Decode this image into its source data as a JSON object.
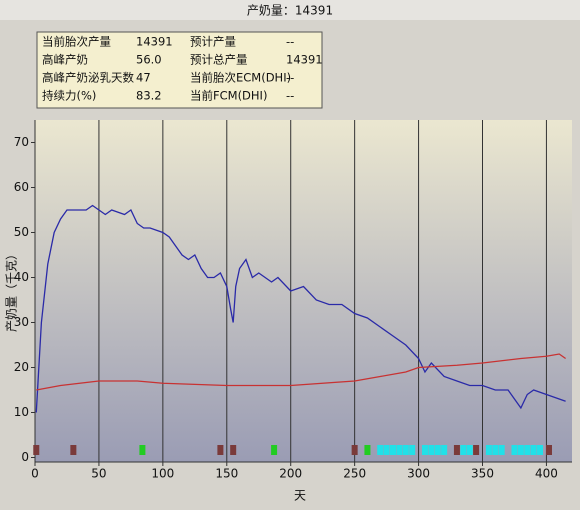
{
  "chart_data": {
    "type": "line",
    "title": "产奶量：14391",
    "xlabel": "天",
    "ylabel": "产奶量（千克）",
    "info": [
      [
        "当前胎次产量",
        "14391",
        "预计产量",
        "--"
      ],
      [
        "高峰产奶",
        "56.0",
        "预计总产量",
        "14391"
      ],
      [
        "高峰产奶泌乳天数",
        "47",
        "当前胎次ECM(DHI)",
        "--"
      ],
      [
        "持续力(%)",
        "83.2",
        "当前FCM(DHI)",
        "--"
      ]
    ],
    "xlim": [
      0,
      420
    ],
    "ylim": [
      -1,
      75
    ],
    "xticks": [
      0,
      50,
      100,
      150,
      200,
      250,
      300,
      350,
      400
    ],
    "yticks": [
      0,
      10,
      20,
      30,
      40,
      50,
      60,
      70
    ],
    "grid": "x",
    "series": [
      {
        "color": "#2a2aa8",
        "x": [
          1,
          5,
          10,
          15,
          20,
          25,
          30,
          40,
          45,
          50,
          55,
          60,
          70,
          75,
          80,
          85,
          90,
          100,
          105,
          110,
          115,
          120,
          125,
          130,
          135,
          140,
          145,
          150,
          153,
          155,
          157,
          160,
          165,
          170,
          175,
          180,
          185,
          190,
          200,
          210,
          220,
          230,
          240,
          250,
          260,
          270,
          280,
          290,
          300,
          305,
          310,
          320,
          330,
          340,
          350,
          360,
          370,
          375,
          380,
          385,
          390,
          400,
          410,
          415
        ],
        "values": [
          10,
          30,
          43,
          50,
          53,
          55,
          55,
          55,
          56,
          55,
          54,
          55,
          54,
          55,
          52,
          51,
          51,
          50,
          49,
          47,
          45,
          44,
          45,
          42,
          40,
          40,
          41,
          38,
          33,
          30,
          38,
          42,
          44,
          40,
          41,
          40,
          39,
          40,
          37,
          38,
          35,
          34,
          34,
          32,
          31,
          29,
          27,
          25,
          22,
          19,
          21,
          18,
          17,
          16,
          16,
          15,
          15,
          13,
          11,
          14,
          15,
          14,
          13,
          12.5
        ]
      },
      {
        "color": "#c83232",
        "x": [
          1,
          20,
          50,
          80,
          100,
          150,
          200,
          250,
          270,
          290,
          300,
          330,
          350,
          380,
          400,
          410,
          415
        ],
        "values": [
          15,
          16,
          17,
          17,
          16.5,
          16,
          16,
          17,
          18,
          19,
          20,
          20.5,
          21,
          22,
          22.5,
          23,
          22
        ]
      }
    ],
    "events": [
      {
        "x": 1,
        "color": "#7a3a3a"
      },
      {
        "x": 30,
        "color": "#7a3a3a"
      },
      {
        "x": 145,
        "color": "#7a3a3a"
      },
      {
        "x": 155,
        "color": "#7a3a3a"
      },
      {
        "x": 250,
        "color": "#7a3a3a"
      },
      {
        "x": 330,
        "color": "#7a3a3a"
      },
      {
        "x": 345,
        "color": "#7a3a3a"
      },
      {
        "x": 402,
        "color": "#7a3a3a"
      },
      {
        "x": 84,
        "color": "#22cc22"
      },
      {
        "x": 187,
        "color": "#22cc22"
      },
      {
        "x": 260,
        "color": "#22cc22"
      },
      {
        "x": 270,
        "color": "#22e0e8"
      },
      {
        "x": 275,
        "color": "#22e0e8"
      },
      {
        "x": 280,
        "color": "#22e0e8"
      },
      {
        "x": 285,
        "color": "#22e0e8"
      },
      {
        "x": 290,
        "color": "#22e0e8"
      },
      {
        "x": 295,
        "color": "#22e0e8"
      },
      {
        "x": 305,
        "color": "#22e0e8"
      },
      {
        "x": 310,
        "color": "#22e0e8"
      },
      {
        "x": 315,
        "color": "#22e0e8"
      },
      {
        "x": 320,
        "color": "#22e0e8"
      },
      {
        "x": 335,
        "color": "#22e0e8"
      },
      {
        "x": 340,
        "color": "#22e0e8"
      },
      {
        "x": 355,
        "color": "#22e0e8"
      },
      {
        "x": 360,
        "color": "#22e0e8"
      },
      {
        "x": 365,
        "color": "#22e0e8"
      },
      {
        "x": 375,
        "color": "#22e0e8"
      },
      {
        "x": 380,
        "color": "#22e0e8"
      },
      {
        "x": 385,
        "color": "#22e0e8"
      },
      {
        "x": 390,
        "color": "#22e0e8"
      },
      {
        "x": 395,
        "color": "#22e0e8"
      }
    ]
  }
}
